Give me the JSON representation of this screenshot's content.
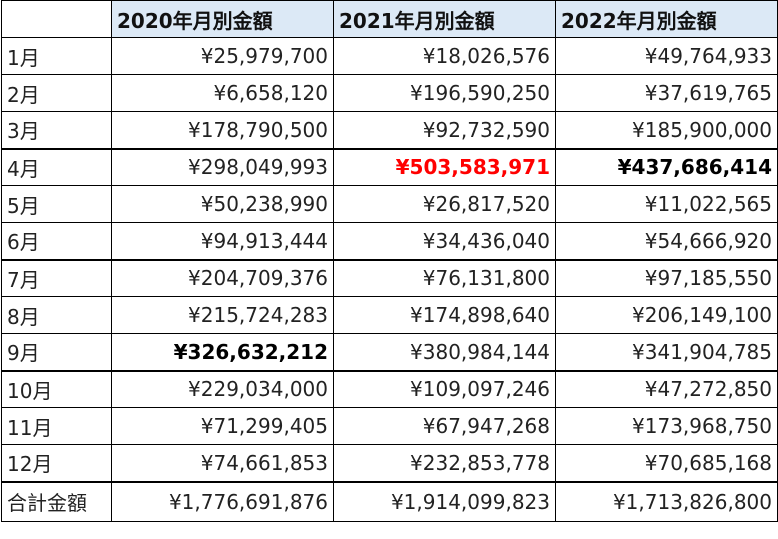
{
  "table": {
    "columns": [
      "",
      "2020年月別金額",
      "2021年月別金額",
      "2022年月別金額"
    ],
    "rows": [
      {
        "label": "1月",
        "values": [
          "¥25,979,700",
          "¥18,026,576",
          "¥49,764,933"
        ]
      },
      {
        "label": "2月",
        "values": [
          "¥6,658,120",
          "¥196,590,250",
          "¥37,619,765"
        ]
      },
      {
        "label": "3月",
        "values": [
          "¥178,790,500",
          "¥92,732,590",
          "¥185,900,000"
        ]
      },
      {
        "label": "4月",
        "values": [
          "¥298,049,993",
          "¥503,583,971",
          "¥437,686,414"
        ]
      },
      {
        "label": "5月",
        "values": [
          "¥50,238,990",
          "¥26,817,520",
          "¥11,022,565"
        ]
      },
      {
        "label": "6月",
        "values": [
          "¥94,913,444",
          "¥34,436,040",
          "¥54,666,920"
        ]
      },
      {
        "label": "7月",
        "values": [
          "¥204,709,376",
          "¥76,131,800",
          "¥97,185,550"
        ]
      },
      {
        "label": "8月",
        "values": [
          "¥215,724,283",
          "¥174,898,640",
          "¥206,149,100"
        ]
      },
      {
        "label": "9月",
        "values": [
          "¥326,632,212",
          "¥380,984,144",
          "¥341,904,785"
        ]
      },
      {
        "label": "10月",
        "values": [
          "¥229,034,000",
          "¥109,097,246",
          "¥47,272,850"
        ]
      },
      {
        "label": "11月",
        "values": [
          "¥71,299,405",
          "¥67,947,268",
          "¥173,968,750"
        ]
      },
      {
        "label": "12月",
        "values": [
          "¥74,661,853",
          "¥232,853,778",
          "¥70,685,168"
        ]
      },
      {
        "label": "合計金額",
        "values": [
          "¥1,776,691,876",
          "¥1,914,099,823",
          "¥1,713,826,800"
        ]
      }
    ]
  },
  "colors": {
    "header_background": "#dce9f6",
    "highlight_red": "#ff0000",
    "border": "#000000"
  }
}
